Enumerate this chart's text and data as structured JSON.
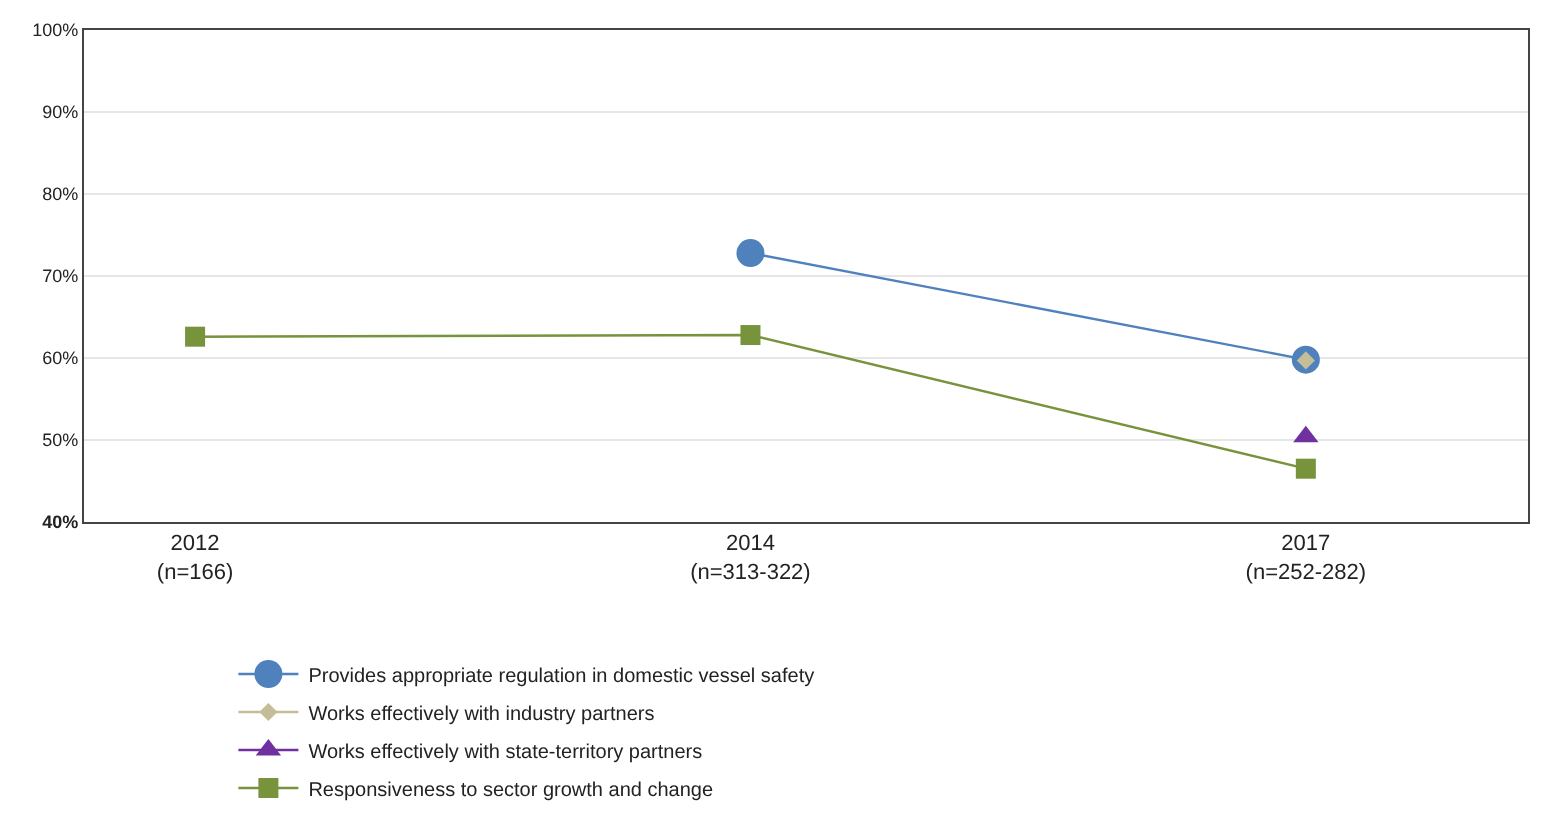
{
  "chart_data": {
    "type": "line",
    "categories": [
      "2012\n(n=166)",
      "2014\n(n=313-322)",
      "2017\n(n=252-282)"
    ],
    "series": [
      {
        "name": "Provides appropriate regulation in domestic vessel safety",
        "color": "#4f81bd",
        "marker": "circle",
        "values": [
          null,
          72.8,
          59.8
        ]
      },
      {
        "name": "Works effectively with industry partners",
        "color": "#c4bd97",
        "marker": "diamond",
        "values": [
          null,
          null,
          59.7
        ]
      },
      {
        "name": "Works effectively with state-territory partners",
        "color": "#7030a0",
        "marker": "triangle",
        "values": [
          null,
          null,
          50.4
        ]
      },
      {
        "name": "Responsiveness to sector growth and change",
        "color": "#77933c",
        "marker": "square",
        "values": [
          62.6,
          62.8,
          46.5
        ]
      }
    ],
    "ylim": [
      40,
      100
    ],
    "yticks": [
      {
        "value": 40,
        "label": "40%"
      },
      {
        "value": 50,
        "label": "50%"
      },
      {
        "value": 60,
        "label": "60%"
      },
      {
        "value": 70,
        "label": "70%"
      },
      {
        "value": 80,
        "label": "80%"
      },
      {
        "value": 90,
        "label": "90%"
      },
      {
        "value": 100,
        "label": "100%"
      }
    ],
    "grid": "y",
    "legend": "bottom"
  }
}
